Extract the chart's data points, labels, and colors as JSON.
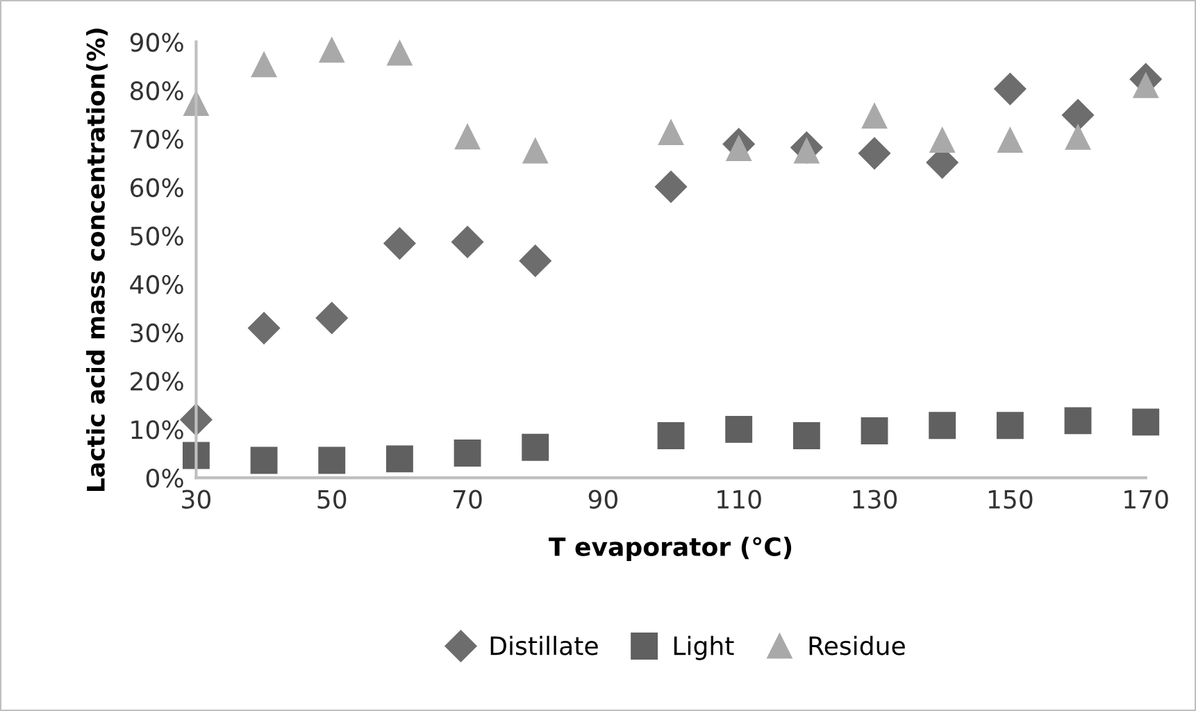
{
  "chart_data": {
    "type": "scatter",
    "xlabel": "T evaporator (°C)",
    "ylabel": "Lactic acid mass concentration(%)",
    "x": [
      30,
      40,
      50,
      60,
      70,
      80,
      100,
      110,
      120,
      130,
      140,
      150,
      160,
      170
    ],
    "series": [
      {
        "name": "Distillate",
        "color": "#6d6d6d",
        "marker": "diamond",
        "values": [
          12.0,
          30.9,
          33.0,
          48.4,
          48.7,
          44.8,
          60.1,
          68.9,
          68.2,
          67.0,
          65.1,
          80.3,
          74.9,
          82.3
        ]
      },
      {
        "name": "Light",
        "color": "#606060",
        "marker": "square",
        "values": [
          4.6,
          3.6,
          3.6,
          3.9,
          5.1,
          6.3,
          8.7,
          10.0,
          8.7,
          9.7,
          10.8,
          10.8,
          11.8,
          11.5
        ]
      },
      {
        "name": "Residue",
        "color": "#a9a9a9",
        "marker": "triangle",
        "values": [
          77.3,
          85.3,
          88.3,
          87.7,
          70.4,
          67.5,
          71.3,
          68.0,
          67.5,
          74.7,
          69.7,
          69.7,
          70.3,
          81.0
        ]
      }
    ],
    "xlim": [
      30,
      170
    ],
    "xticks": [
      30,
      50,
      70,
      90,
      110,
      130,
      150,
      170
    ],
    "ylim": [
      0,
      90
    ],
    "yticks": [
      {
        "value": 0,
        "label": "0%"
      },
      {
        "value": 10,
        "label": "10%"
      },
      {
        "value": 20,
        "label": "20%"
      },
      {
        "value": 30,
        "label": "30%"
      },
      {
        "value": 40,
        "label": "40%"
      },
      {
        "value": 50,
        "label": "50%"
      },
      {
        "value": 60,
        "label": "60%"
      },
      {
        "value": 70,
        "label": "70%"
      },
      {
        "value": 80,
        "label": "80%"
      },
      {
        "value": 90,
        "label": "90%"
      }
    ],
    "grid": false,
    "legend": "bottom"
  }
}
